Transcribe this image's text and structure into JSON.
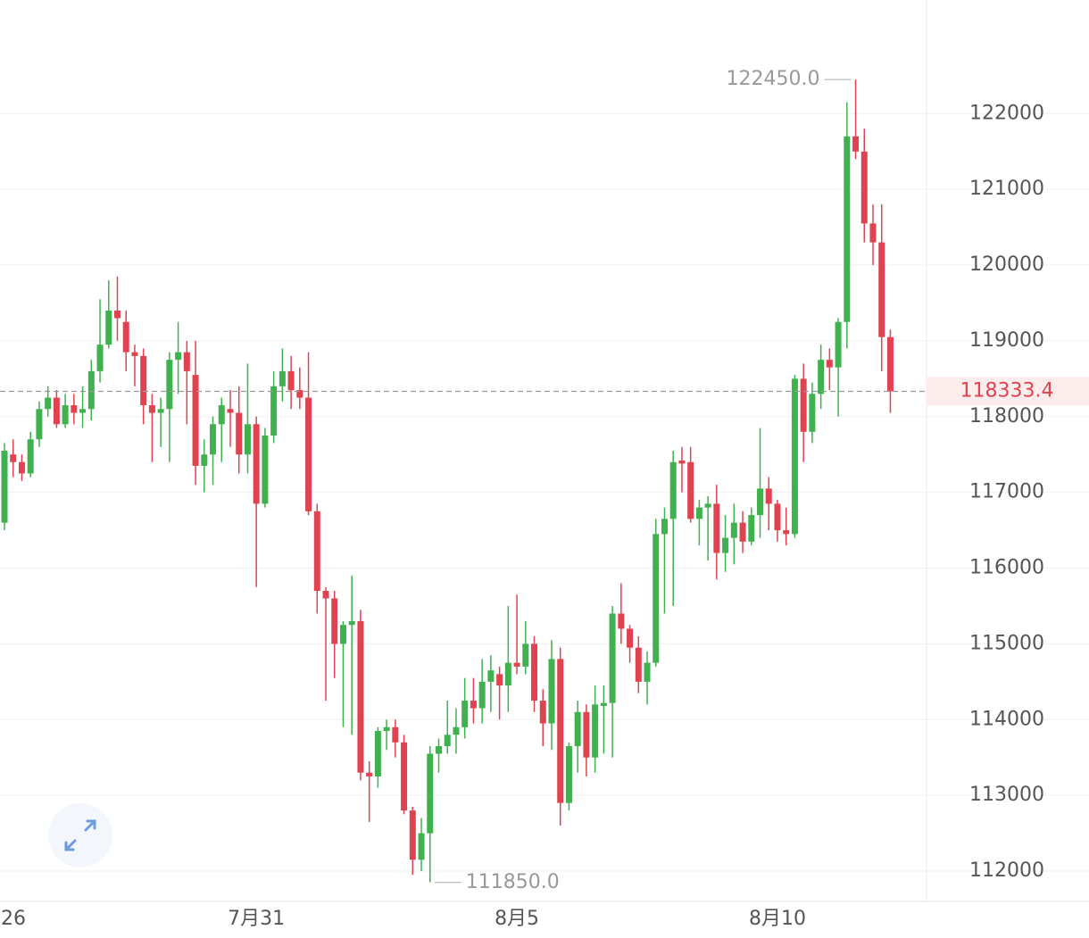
{
  "chart_data": {
    "type": "candlestick",
    "categories": [
      "26",
      null,
      null,
      null,
      null,
      null,
      null,
      null,
      null,
      null,
      null,
      null,
      null,
      null,
      null,
      null,
      null,
      null,
      null,
      null,
      null,
      null,
      null,
      null,
      null,
      null,
      null,
      null,
      null,
      "7月31",
      null,
      null,
      null,
      null,
      null,
      null,
      null,
      null,
      null,
      null,
      null,
      null,
      null,
      null,
      null,
      null,
      null,
      null,
      null,
      null,
      null,
      null,
      null,
      null,
      null,
      null,
      null,
      null,
      null,
      "8月5",
      null,
      null,
      null,
      null,
      null,
      null,
      null,
      null,
      null,
      null,
      null,
      null,
      null,
      null,
      null,
      null,
      null,
      null,
      null,
      null,
      null,
      null,
      null,
      null,
      null,
      null,
      null,
      null,
      null,
      "8月10",
      null,
      null,
      null,
      null,
      null,
      null,
      null,
      null,
      null,
      null,
      null,
      null,
      null
    ],
    "series": [
      {
        "up_color": "#3fb24f",
        "down_color": "#e0434f",
        "open": [
          116600,
          117500,
          117400,
          117250,
          117700,
          118100,
          118250,
          117900,
          118150,
          118050,
          118100,
          118600,
          118950,
          119400,
          119250,
          118850,
          118800,
          118150,
          118050,
          118100,
          118750,
          118850,
          118550,
          117350,
          117500,
          117900,
          118100,
          118050,
          117500,
          117900,
          116850,
          117750,
          118400,
          118600,
          118350,
          118250,
          116750,
          115700,
          115600,
          115000,
          115250,
          115300,
          113300,
          113250,
          113850,
          113900,
          113700,
          112800,
          112150,
          112500,
          113550,
          113650,
          113800,
          113900,
          114250,
          114150,
          114500,
          114600,
          114450,
          114750,
          114700,
          115000,
          114250,
          113950,
          114800,
          112900,
          113650,
          114100,
          113500,
          114180,
          114220,
          115400,
          115200,
          114950,
          114500,
          114750,
          116450,
          116650,
          117420,
          117400,
          116650,
          116800,
          116850,
          116200,
          116400,
          116600,
          116350,
          116700,
          117050,
          116850,
          116500,
          116450,
          118500,
          117800,
          118300,
          118750,
          118650,
          119250,
          121700,
          121500,
          120550,
          120300,
          119050
        ],
        "high": [
          117650,
          117700,
          117500,
          117800,
          118200,
          118400,
          118350,
          118300,
          118300,
          118400,
          118750,
          119550,
          119800,
          119850,
          119400,
          118950,
          118900,
          118300,
          118250,
          118850,
          119250,
          119000,
          119000,
          117700,
          118000,
          118250,
          118350,
          118400,
          118700,
          118000,
          117850,
          118600,
          118900,
          118800,
          118650,
          118850,
          116850,
          115750,
          115700,
          115300,
          115900,
          115450,
          113450,
          113900,
          114000,
          114000,
          113800,
          112850,
          112700,
          113650,
          113750,
          114250,
          114150,
          114550,
          114550,
          114800,
          114850,
          114700,
          115500,
          115650,
          115300,
          115100,
          114400,
          115050,
          114950,
          113700,
          114250,
          114200,
          114450,
          114450,
          115500,
          115800,
          115250,
          115100,
          114900,
          116650,
          116800,
          117550,
          117600,
          117600,
          116900,
          116950,
          117100,
          116700,
          116850,
          116750,
          116800,
          117850,
          117200,
          116900,
          116800,
          118550,
          118700,
          118450,
          118950,
          118900,
          119300,
          122150,
          122450,
          121800,
          120800,
          120800,
          119150
        ],
        "low": [
          116500,
          117200,
          117150,
          117200,
          117600,
          118000,
          117850,
          117850,
          117900,
          117850,
          117950,
          118450,
          118900,
          119000,
          118600,
          118400,
          117900,
          117400,
          117600,
          117400,
          118300,
          117900,
          117100,
          117000,
          117100,
          117400,
          117600,
          117250,
          117250,
          115750,
          116800,
          117650,
          118200,
          118100,
          118100,
          116700,
          115400,
          114250,
          114550,
          113900,
          113800,
          113200,
          112650,
          113100,
          113600,
          113500,
          112750,
          111950,
          112000,
          111850,
          113300,
          113550,
          113550,
          113750,
          113950,
          113950,
          114100,
          114000,
          114100,
          114600,
          114600,
          114100,
          113650,
          113600,
          112600,
          112800,
          113300,
          113250,
          113300,
          113550,
          113500,
          115000,
          114750,
          114350,
          114200,
          114700,
          115400,
          115500,
          117000,
          116600,
          116300,
          116100,
          115850,
          115950,
          116050,
          116200,
          116300,
          116400,
          116500,
          116350,
          116300,
          116400,
          117400,
          117650,
          118100,
          118350,
          118000,
          118900,
          121400,
          120300,
          120000,
          118600,
          118050
        ],
        "close": [
          117550,
          117400,
          117250,
          117700,
          118100,
          118250,
          117900,
          118150,
          118050,
          118100,
          118600,
          118950,
          119400,
          119300,
          118850,
          118800,
          118150,
          118050,
          118100,
          118750,
          118850,
          118600,
          117350,
          117500,
          117900,
          118150,
          118050,
          117500,
          117900,
          116850,
          117750,
          118400,
          118600,
          118350,
          118250,
          116750,
          115700,
          115600,
          115000,
          115250,
          115300,
          113300,
          113250,
          113850,
          113900,
          113700,
          112800,
          112150,
          112500,
          113550,
          113650,
          113800,
          113900,
          114250,
          114150,
          114500,
          114650,
          114450,
          114750,
          114700,
          115000,
          114250,
          113950,
          114800,
          112900,
          113650,
          114100,
          113500,
          114200,
          114220,
          115400,
          115200,
          114950,
          114500,
          114750,
          116450,
          116650,
          117400,
          117380,
          116650,
          116800,
          116850,
          116200,
          116400,
          116600,
          116350,
          116700,
          117050,
          116850,
          116500,
          116450,
          118500,
          117800,
          118300,
          118750,
          118650,
          119250,
          121700,
          121500,
          120550,
          120300,
          119050,
          118333.4
        ]
      }
    ],
    "ylim": [
      111600,
      123500
    ],
    "yticks": [
      112000,
      113000,
      114000,
      115000,
      116000,
      117000,
      118000,
      119000,
      120000,
      121000,
      122000
    ],
    "grid": true,
    "annotations": [
      {
        "value": 122450,
        "label": "122450.0"
      },
      {
        "value": 111850,
        "label": "111850.0"
      }
    ],
    "last_price": 118333.4,
    "last_price_color": "#e0434f"
  }
}
